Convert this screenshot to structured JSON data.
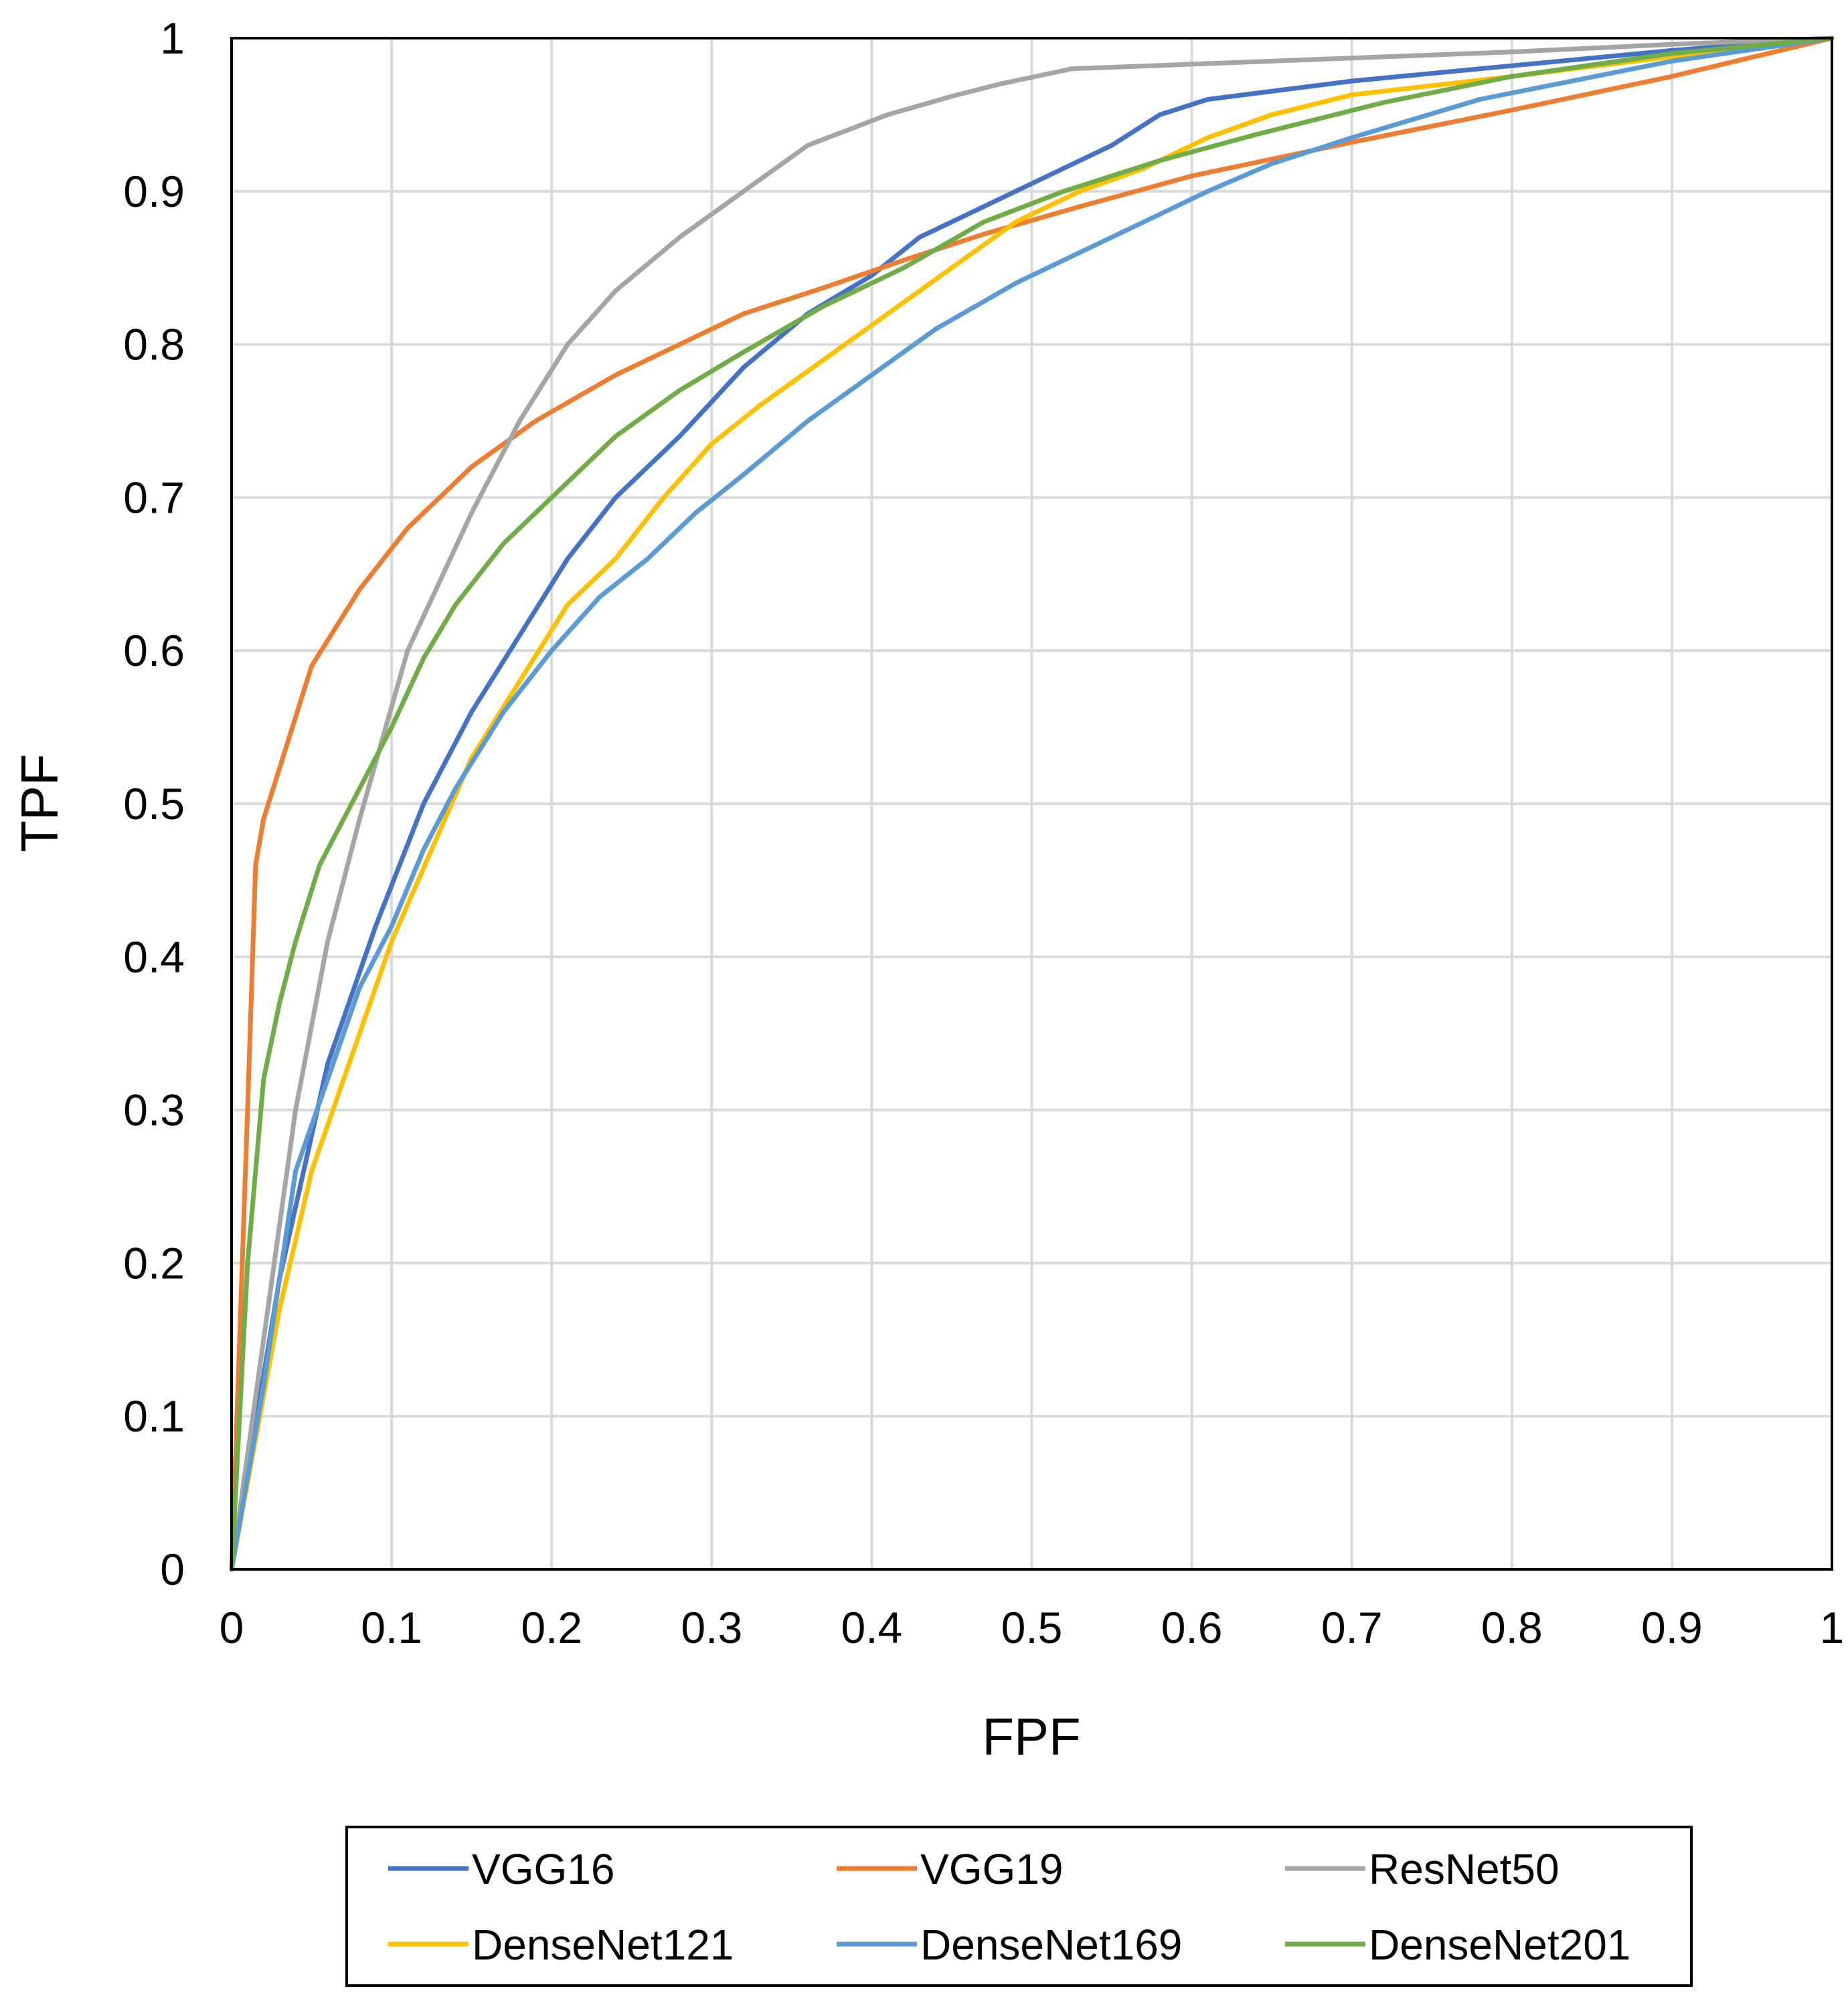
{
  "chart_data": {
    "type": "line",
    "title": "",
    "xlabel": "FPF",
    "ylabel": "TPF",
    "xlim": [
      0,
      1
    ],
    "ylim": [
      0,
      1
    ],
    "x_ticks": [
      0,
      0.1,
      0.2,
      0.3,
      0.4,
      0.5,
      0.6,
      0.7,
      0.8,
      0.9,
      1
    ],
    "y_ticks": [
      0,
      0.1,
      0.2,
      0.3,
      0.4,
      0.5,
      0.6,
      0.7,
      0.8,
      0.9,
      1
    ],
    "x_tick_labels": [
      "0",
      "0.1",
      "0.2",
      "0.3",
      "0.4",
      "0.5",
      "0.6",
      "0.7",
      "0.8",
      "0.9",
      "1"
    ],
    "y_tick_labels": [
      "0",
      "0.1",
      "0.2",
      "0.3",
      "0.4",
      "0.5",
      "0.6",
      "0.7",
      "0.8",
      "0.9",
      "1"
    ],
    "grid": true,
    "legend_position": "bottom",
    "series": [
      {
        "name": "VGG16",
        "color": "#4472C4",
        "points": [
          [
            0,
            0
          ],
          [
            0.03,
            0.19
          ],
          [
            0.06,
            0.33
          ],
          [
            0.09,
            0.42
          ],
          [
            0.12,
            0.5
          ],
          [
            0.15,
            0.56
          ],
          [
            0.18,
            0.61
          ],
          [
            0.21,
            0.66
          ],
          [
            0.24,
            0.7
          ],
          [
            0.28,
            0.74
          ],
          [
            0.32,
            0.785
          ],
          [
            0.36,
            0.82
          ],
          [
            0.4,
            0.845
          ],
          [
            0.43,
            0.87
          ],
          [
            0.47,
            0.89
          ],
          [
            0.51,
            0.91
          ],
          [
            0.55,
            0.93
          ],
          [
            0.58,
            0.95
          ],
          [
            0.61,
            0.96
          ],
          [
            0.7,
            0.972
          ],
          [
            0.8,
            0.982
          ],
          [
            0.9,
            0.992
          ],
          [
            1,
            1
          ]
        ]
      },
      {
        "name": "VGG19",
        "color": "#ED7D31",
        "points": [
          [
            0,
            0
          ],
          [
            0.01,
            0.3
          ],
          [
            0.015,
            0.46
          ],
          [
            0.02,
            0.49
          ],
          [
            0.05,
            0.59
          ],
          [
            0.08,
            0.64
          ],
          [
            0.11,
            0.68
          ],
          [
            0.15,
            0.72
          ],
          [
            0.19,
            0.75
          ],
          [
            0.24,
            0.78
          ],
          [
            0.28,
            0.8
          ],
          [
            0.32,
            0.82
          ],
          [
            0.37,
            0.837
          ],
          [
            0.42,
            0.855
          ],
          [
            0.47,
            0.872
          ],
          [
            0.53,
            0.89
          ],
          [
            0.6,
            0.91
          ],
          [
            0.7,
            0.932
          ],
          [
            0.8,
            0.953
          ],
          [
            0.9,
            0.975
          ],
          [
            1,
            1
          ]
        ]
      },
      {
        "name": "ResNet50",
        "color": "#A5A5A5",
        "points": [
          [
            0,
            0
          ],
          [
            0.02,
            0.15
          ],
          [
            0.04,
            0.3
          ],
          [
            0.06,
            0.41
          ],
          [
            0.08,
            0.49
          ],
          [
            0.11,
            0.6
          ],
          [
            0.15,
            0.69
          ],
          [
            0.18,
            0.75
          ],
          [
            0.21,
            0.8
          ],
          [
            0.24,
            0.835
          ],
          [
            0.28,
            0.87
          ],
          [
            0.32,
            0.9
          ],
          [
            0.36,
            0.93
          ],
          [
            0.41,
            0.95
          ],
          [
            0.45,
            0.962
          ],
          [
            0.48,
            0.97
          ],
          [
            0.525,
            0.98
          ],
          [
            0.6,
            0.983
          ],
          [
            0.7,
            0.987
          ],
          [
            0.8,
            0.991
          ],
          [
            0.9,
            0.996
          ],
          [
            1,
            1
          ]
        ]
      },
      {
        "name": "DenseNet121",
        "color": "#FFC000",
        "points": [
          [
            0,
            0
          ],
          [
            0.03,
            0.17
          ],
          [
            0.05,
            0.26
          ],
          [
            0.07,
            0.32
          ],
          [
            0.1,
            0.41
          ],
          [
            0.125,
            0.47
          ],
          [
            0.15,
            0.53
          ],
          [
            0.18,
            0.58
          ],
          [
            0.21,
            0.63
          ],
          [
            0.24,
            0.66
          ],
          [
            0.27,
            0.7
          ],
          [
            0.3,
            0.735
          ],
          [
            0.33,
            0.76
          ],
          [
            0.37,
            0.79
          ],
          [
            0.41,
            0.82
          ],
          [
            0.45,
            0.85
          ],
          [
            0.49,
            0.88
          ],
          [
            0.53,
            0.9
          ],
          [
            0.57,
            0.915
          ],
          [
            0.61,
            0.935
          ],
          [
            0.65,
            0.95
          ],
          [
            0.7,
            0.963
          ],
          [
            0.8,
            0.975
          ],
          [
            0.9,
            0.988
          ],
          [
            1,
            1
          ]
        ]
      },
      {
        "name": "DenseNet169",
        "color": "#5B9BD5",
        "points": [
          [
            0,
            0
          ],
          [
            0.02,
            0.12
          ],
          [
            0.04,
            0.26
          ],
          [
            0.06,
            0.32
          ],
          [
            0.08,
            0.38
          ],
          [
            0.1,
            0.42
          ],
          [
            0.12,
            0.47
          ],
          [
            0.14,
            0.51
          ],
          [
            0.17,
            0.56
          ],
          [
            0.2,
            0.6
          ],
          [
            0.23,
            0.635
          ],
          [
            0.26,
            0.66
          ],
          [
            0.29,
            0.69
          ],
          [
            0.32,
            0.715
          ],
          [
            0.36,
            0.75
          ],
          [
            0.4,
            0.78
          ],
          [
            0.44,
            0.81
          ],
          [
            0.49,
            0.84
          ],
          [
            0.53,
            0.86
          ],
          [
            0.57,
            0.88
          ],
          [
            0.61,
            0.9
          ],
          [
            0.65,
            0.918
          ],
          [
            0.7,
            0.935
          ],
          [
            0.78,
            0.96
          ],
          [
            0.9,
            0.985
          ],
          [
            1,
            1
          ]
        ]
      },
      {
        "name": "DenseNet201",
        "color": "#70AD47",
        "points": [
          [
            0,
            0
          ],
          [
            0.01,
            0.2
          ],
          [
            0.02,
            0.32
          ],
          [
            0.03,
            0.37
          ],
          [
            0.04,
            0.41
          ],
          [
            0.055,
            0.46
          ],
          [
            0.08,
            0.51
          ],
          [
            0.1,
            0.55
          ],
          [
            0.12,
            0.595
          ],
          [
            0.14,
            0.63
          ],
          [
            0.17,
            0.67
          ],
          [
            0.21,
            0.71
          ],
          [
            0.24,
            0.74
          ],
          [
            0.28,
            0.77
          ],
          [
            0.32,
            0.795
          ],
          [
            0.37,
            0.825
          ],
          [
            0.42,
            0.85
          ],
          [
            0.47,
            0.88
          ],
          [
            0.52,
            0.9
          ],
          [
            0.58,
            0.92
          ],
          [
            0.64,
            0.937
          ],
          [
            0.72,
            0.958
          ],
          [
            0.8,
            0.975
          ],
          [
            0.9,
            0.99
          ],
          [
            1,
            1
          ]
        ]
      }
    ]
  }
}
